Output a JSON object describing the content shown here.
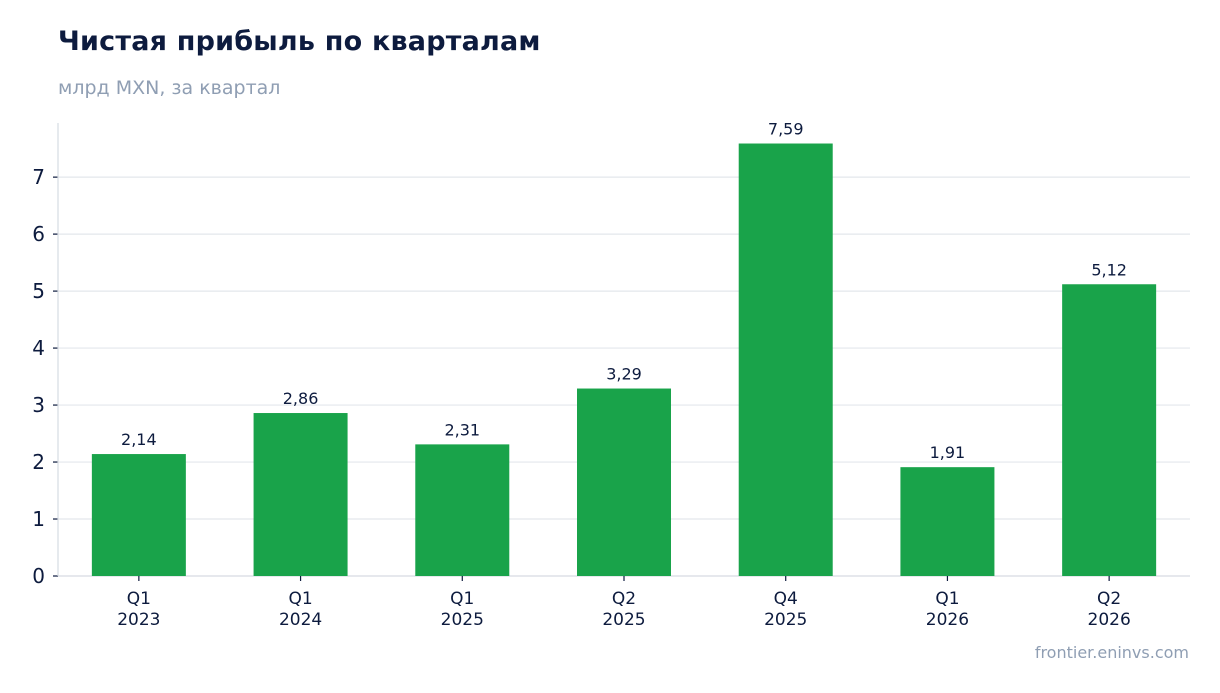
{
  "header": {
    "title": "Чистая прибыль по кварталам",
    "subtitle": "млрд MXN, за квартал"
  },
  "footer": {
    "source": "frontier.eninvs.com"
  },
  "chart_data": {
    "type": "bar",
    "title": "Чистая прибыль по кварталам",
    "subtitle": "млрд MXN, за квартал",
    "categories": [
      [
        "Q1",
        "2023"
      ],
      [
        "Q1",
        "2024"
      ],
      [
        "Q1",
        "2025"
      ],
      [
        "Q2",
        "2025"
      ],
      [
        "Q4",
        "2025"
      ],
      [
        "Q1",
        "2026"
      ],
      [
        "Q2",
        "2026"
      ]
    ],
    "values": [
      2.14,
      2.86,
      2.31,
      3.29,
      7.59,
      1.91,
      5.12
    ],
    "value_labels": [
      "2,14",
      "2,86",
      "2,31",
      "3,29",
      "7,59",
      "1,91",
      "5,12"
    ],
    "yticks": [
      0,
      1,
      2,
      3,
      4,
      5,
      6,
      7
    ],
    "ylim": [
      0,
      7.95
    ],
    "grid": true,
    "legend": "none",
    "colors": {
      "bar": "#19a34a",
      "grid": "#e3e7ec",
      "axis": "#d6dbe2",
      "text": "#0d1b3e",
      "muted": "#8f9eb3"
    }
  }
}
